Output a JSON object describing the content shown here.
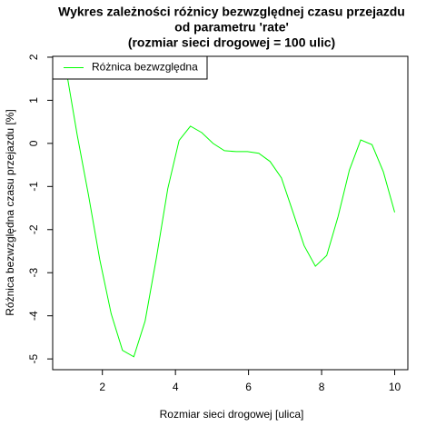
{
  "chart_data": {
    "type": "line",
    "title": "Wykres zależności różnicy bezwzględnej czasu przejazdu",
    "subtitle": [
      "od parametru 'rate'",
      "(rozmiar sieci drogowej = 100 ulic)"
    ],
    "x_label": "Rozmiar sieci drogowej [ulica]",
    "y_label": "Różnica bezwzględna czasu przejazdu [%]",
    "x": [
      1,
      1.31,
      1.62,
      1.93,
      2.24,
      2.55,
      2.86,
      3.17,
      3.48,
      3.79,
      4.1,
      4.41,
      4.72,
      5.03,
      5.34,
      5.66,
      5.97,
      6.28,
      6.59,
      6.9,
      7.21,
      7.52,
      7.83,
      8.14,
      8.45,
      8.76,
      9.07,
      9.38,
      9.69,
      10
    ],
    "series": [
      {
        "name": "Różnica bezwzględna",
        "color": "#00ff00",
        "values": [
          1.75,
          0.2,
          -1.2,
          -2.7,
          -3.95,
          -4.8,
          -4.95,
          -4.12,
          -2.65,
          -1.05,
          0.07,
          0.4,
          0.25,
          0.0,
          -0.17,
          -0.19,
          -0.19,
          -0.23,
          -0.42,
          -0.8,
          -1.58,
          -2.37,
          -2.85,
          -2.6,
          -1.7,
          -0.62,
          0.08,
          -0.03,
          -0.66,
          -1.6
        ]
      }
    ],
    "xlim": [
      0.64,
      10.36
    ],
    "ylim": [
      -5.25,
      2.02
    ],
    "xticks": [
      2,
      4,
      6,
      8,
      10
    ],
    "yticks": [
      -5,
      -4,
      -3,
      -2,
      -1,
      0,
      1,
      2
    ],
    "legend": "topleft"
  }
}
